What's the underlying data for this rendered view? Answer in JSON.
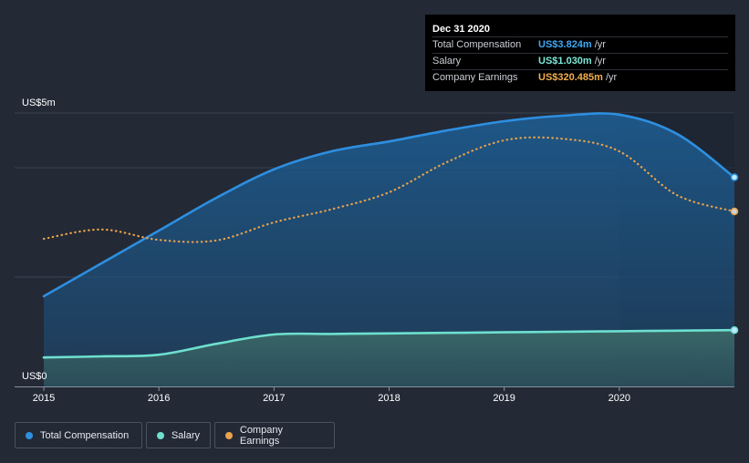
{
  "tooltip": {
    "title": "Dec 31 2020",
    "rows": [
      {
        "label": "Total Compensation",
        "value": "US$3.824m",
        "unit": "/yr",
        "color": "#3fa9f5"
      },
      {
        "label": "Salary",
        "value": "US$1.030m",
        "unit": "/yr",
        "color": "#7ee8d8"
      },
      {
        "label": "Company Earnings",
        "value": "US$320.485m",
        "unit": "/yr",
        "color": "#f2ae4e"
      }
    ]
  },
  "legend": [
    {
      "label": "Total Compensation",
      "color": "#2d8fe0"
    },
    {
      "label": "Salary",
      "color": "#6ee0cf"
    },
    {
      "label": "Company Earnings",
      "color": "#e8a24a"
    }
  ],
  "chart_data": {
    "type": "line",
    "x_ticks": [
      "2015",
      "2016",
      "2017",
      "2018",
      "2019",
      "2020"
    ],
    "y_tick_labels": {
      "top": "US$5m",
      "bottom": "US$0"
    },
    "ylim": [
      0,
      5
    ],
    "xlim": [
      2015.0,
      2021.0
    ],
    "highlight_from": 2020.0,
    "series": [
      {
        "name": "Total Compensation",
        "color": "#2e8fe0",
        "style": "solid",
        "area": true,
        "points": [
          [
            2015.0,
            1.65
          ],
          [
            2015.5,
            2.25
          ],
          [
            2016.0,
            2.85
          ],
          [
            2016.5,
            3.45
          ],
          [
            2017.0,
            3.97
          ],
          [
            2017.5,
            4.3
          ],
          [
            2018.0,
            4.48
          ],
          [
            2018.5,
            4.68
          ],
          [
            2019.0,
            4.85
          ],
          [
            2019.5,
            4.95
          ],
          [
            2020.0,
            4.97
          ],
          [
            2020.5,
            4.62
          ],
          [
            2021.0,
            3.824
          ]
        ]
      },
      {
        "name": "Salary",
        "color": "#6ee0cf",
        "style": "solid",
        "area": true,
        "points": [
          [
            2015.0,
            0.53
          ],
          [
            2015.5,
            0.55
          ],
          [
            2016.0,
            0.58
          ],
          [
            2016.5,
            0.78
          ],
          [
            2017.0,
            0.95
          ],
          [
            2017.5,
            0.96
          ],
          [
            2018.0,
            0.97
          ],
          [
            2018.5,
            0.98
          ],
          [
            2019.0,
            0.99
          ],
          [
            2019.5,
            1.0
          ],
          [
            2020.0,
            1.01
          ],
          [
            2020.5,
            1.02
          ],
          [
            2021.0,
            1.03
          ]
        ]
      },
      {
        "name": "Company Earnings",
        "color": "#e8a24a",
        "style": "dotted",
        "area": false,
        "points": [
          [
            2015.0,
            2.7
          ],
          [
            2015.5,
            2.87
          ],
          [
            2016.0,
            2.68
          ],
          [
            2016.5,
            2.67
          ],
          [
            2017.0,
            3.0
          ],
          [
            2017.5,
            3.24
          ],
          [
            2018.0,
            3.55
          ],
          [
            2018.5,
            4.1
          ],
          [
            2019.0,
            4.5
          ],
          [
            2019.5,
            4.53
          ],
          [
            2020.0,
            4.3
          ],
          [
            2020.5,
            3.5
          ],
          [
            2021.0,
            3.2
          ]
        ]
      }
    ]
  }
}
